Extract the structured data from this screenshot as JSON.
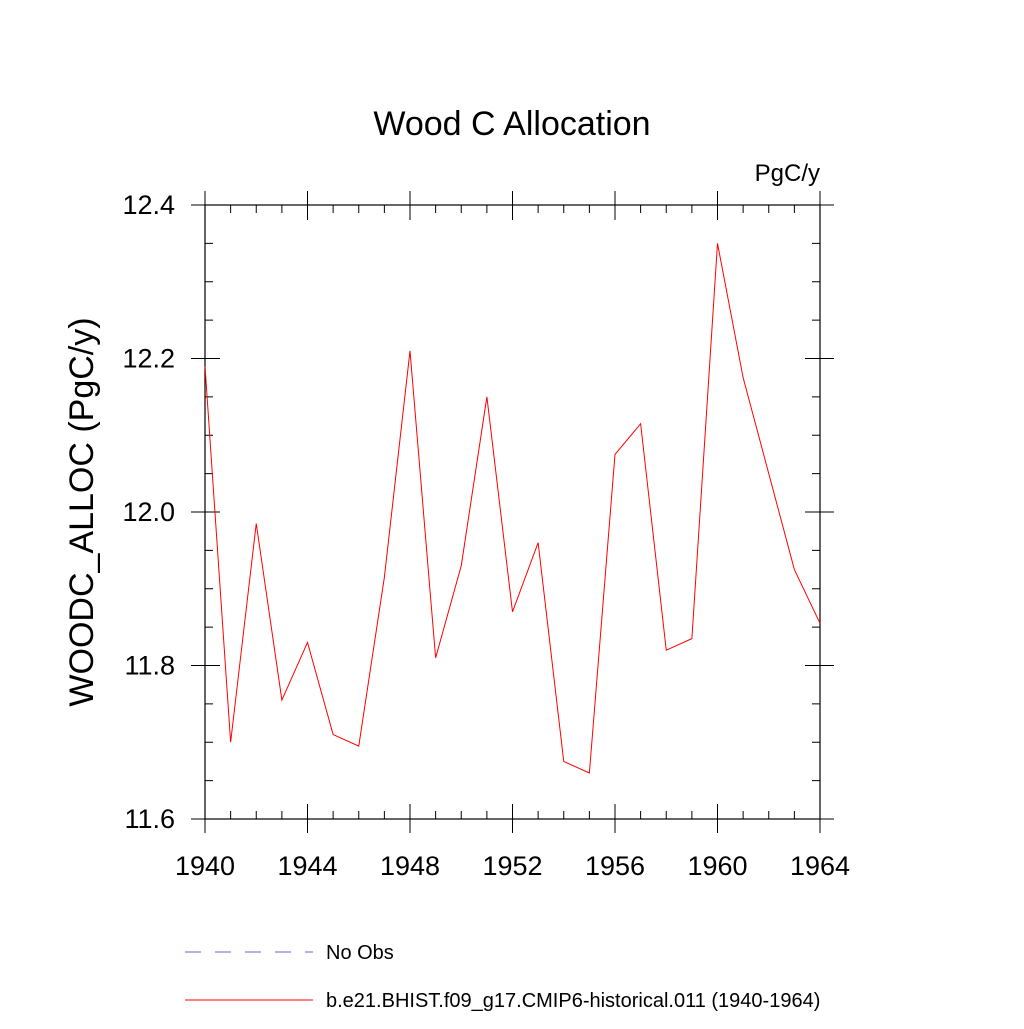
{
  "chart_data": {
    "type": "line",
    "title": "Wood C Allocation",
    "units_label": "PgC/y",
    "xlabel": "",
    "ylabel": "WOODC_ALLOC  (PgC/y)",
    "xlim": [
      1940,
      1964
    ],
    "ylim": [
      11.6,
      12.4
    ],
    "x_ticks": [
      1940,
      1944,
      1948,
      1952,
      1956,
      1960,
      1964
    ],
    "y_ticks": [
      11.6,
      11.8,
      12.0,
      12.2,
      12.4
    ],
    "y_tick_labels": [
      "11.6",
      "11.8",
      "12.0",
      "12.2",
      "12.4"
    ],
    "grid": false,
    "legend_position": "bottom",
    "series": [
      {
        "name": "No Obs",
        "color": "#6666cc",
        "style": "dashed",
        "x": [],
        "values": []
      },
      {
        "name": "b.e21.BHIST.f09_g17.CMIP6-historical.011 (1940-1964)",
        "color": "#ff0000",
        "style": "solid",
        "x": [
          1940,
          1941,
          1942,
          1943,
          1944,
          1945,
          1946,
          1947,
          1948,
          1949,
          1950,
          1951,
          1952,
          1953,
          1954,
          1955,
          1956,
          1957,
          1958,
          1959,
          1960,
          1961,
          1962,
          1963,
          1964
        ],
        "values": [
          12.19,
          11.7,
          11.985,
          11.755,
          11.83,
          11.71,
          11.695,
          11.915,
          12.21,
          11.81,
          11.93,
          12.15,
          11.87,
          11.96,
          11.675,
          11.66,
          12.075,
          12.115,
          11.82,
          11.835,
          12.35,
          12.175,
          12.05,
          11.925,
          11.855
        ]
      }
    ]
  }
}
